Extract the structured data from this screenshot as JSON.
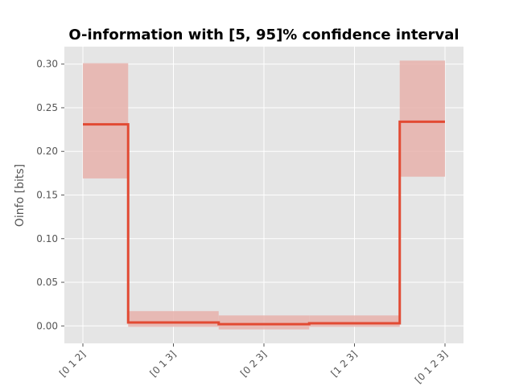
{
  "chart_data": {
    "type": "line",
    "title": "O-information with [5, 95]% confidence interval",
    "xlabel": "",
    "ylabel": "Oinfo [bits]",
    "categories": [
      "[0 1 2]",
      "[0 1 3]",
      "[0 2 3]",
      "[1 2 3]",
      "[0 1 2 3]"
    ],
    "series": [
      {
        "values": [
          0.231,
          0.004,
          0.002,
          0.003,
          0.234
        ],
        "ci_low": [
          0.169,
          -0.001,
          -0.004,
          -0.001,
          0.171
        ],
        "ci_high": [
          0.301,
          0.017,
          0.012,
          0.012,
          0.304
        ]
      }
    ],
    "step": "mid",
    "ylim": [
      -0.02,
      0.32
    ],
    "yticks": [
      0.0,
      0.05,
      0.1,
      0.15,
      0.2,
      0.25,
      0.3
    ],
    "ytick_labels": [
      "0.00",
      "0.05",
      "0.10",
      "0.15",
      "0.20",
      "0.25",
      "0.30"
    ],
    "grid": true,
    "colors": {
      "line": "#e24a33",
      "band": "#e8b2ab",
      "background": "#e5e5e5",
      "grid": "#ffffff"
    }
  }
}
